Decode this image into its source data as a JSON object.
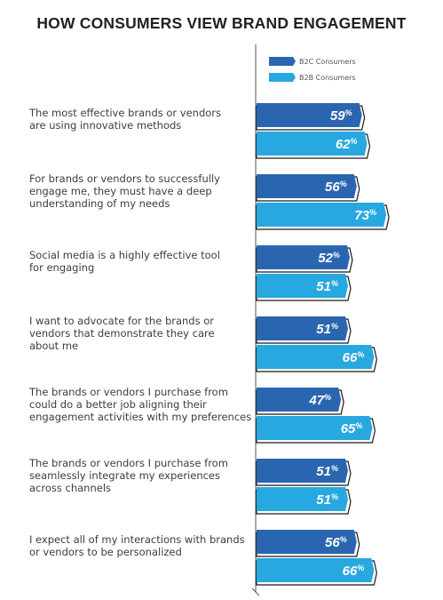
{
  "chart_data": {
    "type": "bar",
    "orientation": "horizontal",
    "title": "HOW CONSUMERS VIEW BRAND ENGAGEMENT",
    "categories": [
      [
        "The most effective brands or vendors",
        "are using innovative methods"
      ],
      [
        "For brands or vendors to successfully",
        "engage me, they must have a deep",
        "understanding of my needs"
      ],
      [
        "Social media is a highly effective tool",
        "for engaging"
      ],
      [
        "I want to advocate for the brands or",
        "vendors that demonstrate they care",
        "about me"
      ],
      [
        "The brands or vendors I purchase from",
        "could do a better job aligning their",
        "engagement activities with my preferences"
      ],
      [
        "The brands or vendors I purchase from",
        "seamlessly integrate my experiences",
        "across channels"
      ],
      [
        "I expect all of my interactions with brands",
        "or vendors to be personalized"
      ]
    ],
    "series": [
      {
        "name": "B2C Consumers",
        "color": "#2a66b0",
        "values": [
          59,
          56,
          52,
          51,
          47,
          51,
          56
        ]
      },
      {
        "name": "B2B Consumers",
        "color": "#27a8e0",
        "values": [
          62,
          73,
          51,
          66,
          65,
          51,
          66
        ]
      }
    ],
    "value_suffix": "%",
    "xlim": [
      0,
      100
    ],
    "legend_position": "top",
    "grid": false
  }
}
